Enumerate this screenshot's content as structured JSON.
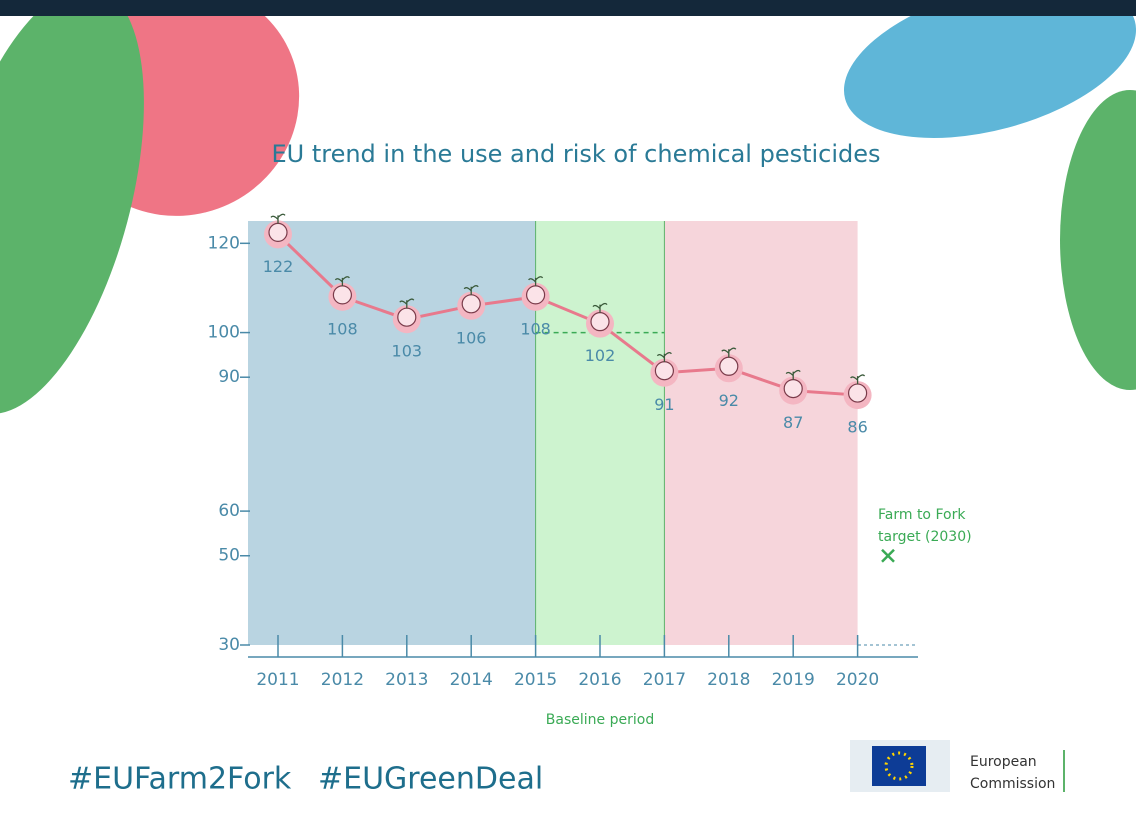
{
  "chart_data": {
    "type": "line",
    "title": "EU trend in the use and risk of chemical pesticides",
    "categories": [
      "2011",
      "2012",
      "2013",
      "2014",
      "2015",
      "2016",
      "2017",
      "2018",
      "2019",
      "2020"
    ],
    "values": [
      122,
      108,
      103,
      106,
      108,
      102,
      91,
      92,
      87,
      86
    ],
    "color": "#e8798c",
    "ylim": [
      30,
      125
    ],
    "yticks": [
      30,
      50,
      60,
      90,
      100,
      120
    ],
    "shaded_periods": [
      {
        "from": "2011",
        "to": "2015",
        "color": "#b9d4e1"
      },
      {
        "from": "2015",
        "to": "2017",
        "color": "#cdf3cf"
      },
      {
        "from": "2017",
        "to": "2020",
        "color": "#f6d5db"
      }
    ],
    "baseline": {
      "label": "Baseline period",
      "from": "2015",
      "to": "2017",
      "value": 100
    },
    "target": {
      "label_lines": [
        "Farm to Fork",
        "target (2030)"
      ],
      "value": 50
    },
    "hashtags": [
      "#EUFarm2Fork",
      "#EUGreenDeal"
    ],
    "logo": [
      "European",
      "Commission"
    ]
  }
}
